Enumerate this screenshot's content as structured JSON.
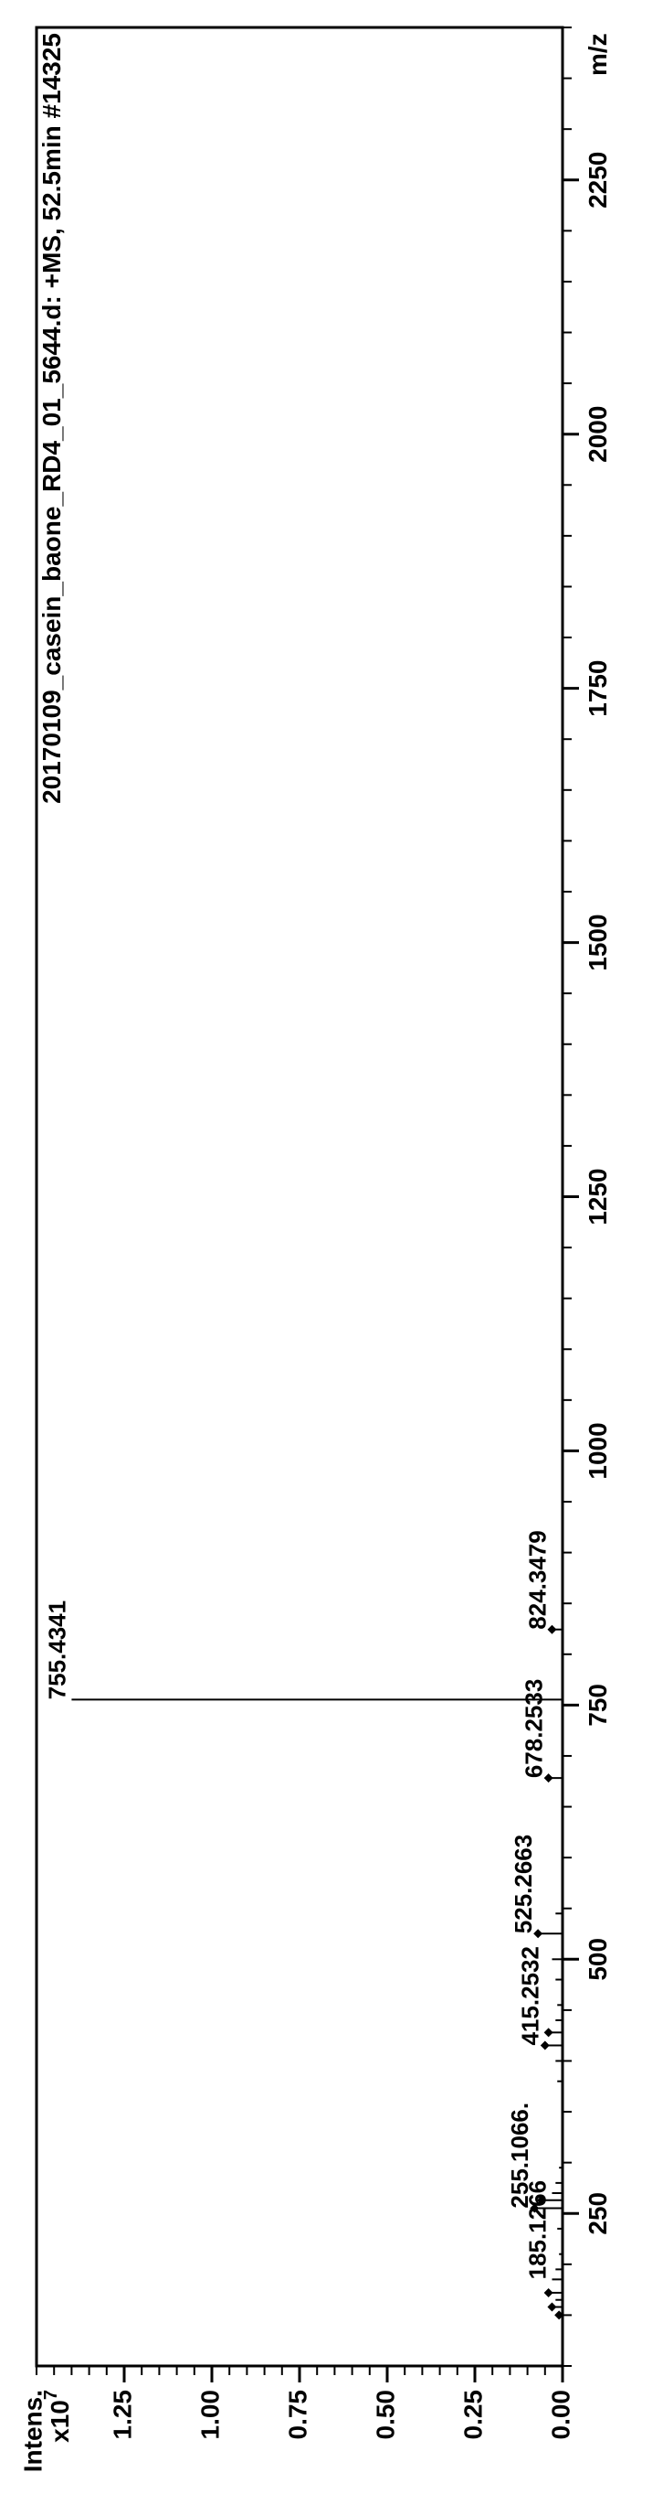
{
  "spectrum": {
    "type": "mass-spectrum",
    "orientation": "rotated-90-ccw",
    "title_top_right": "20170109_casein_baone_RD4_01_5644.d: +MS, 52.5min #14325",
    "title_fontsize": 28,
    "title_fontweight": "bold",
    "title_color": "#000000",
    "background_color": "#ffffff",
    "axis_color": "#000000",
    "axis_linewidth": 3,
    "tick_font_size": 28,
    "tick_font_weight": "bold",
    "tick_color": "#000000",
    "x_axis": {
      "label": "m/z",
      "label_fontsize": 28,
      "label_fontweight": "bold",
      "min": 100,
      "max": 2400,
      "major_ticks": [
        250,
        500,
        750,
        1000,
        1250,
        1500,
        1750,
        2000,
        2250
      ],
      "minor_step": 50
    },
    "y_axis": {
      "label_line1": "Intens.",
      "label_line2": "x10",
      "label_exponent": "7",
      "label_fontsize": 28,
      "label_fontweight": "bold",
      "min": 0.0,
      "max": 1.5,
      "major_ticks": [
        0.0,
        0.25,
        0.5,
        0.75,
        1.0,
        1.25
      ],
      "tick_format": "0.00"
    },
    "peaks": [
      {
        "mz": 150,
        "intensity": 0.01
      },
      {
        "mz": 158,
        "intensity": 0.03
      },
      {
        "mz": 165,
        "intensity": 0.02
      },
      {
        "mz": 172,
        "intensity": 0.04
      },
      {
        "mz": 185.1266,
        "intensity": 0.03,
        "label": "185.1266"
      },
      {
        "mz": 195,
        "intensity": 0.02
      },
      {
        "mz": 210,
        "intensity": 0.01
      },
      {
        "mz": 235,
        "intensity": 0.015
      },
      {
        "mz": 255.1066,
        "intensity": 0.08,
        "label": "255.1066."
      },
      {
        "mz": 263,
        "intensity": 0.06
      },
      {
        "mz": 270,
        "intensity": 0.03
      },
      {
        "mz": 280,
        "intensity": 0.02
      },
      {
        "mz": 295,
        "intensity": 0.01
      },
      {
        "mz": 380,
        "intensity": 0.015
      },
      {
        "mz": 400,
        "intensity": 0.02
      },
      {
        "mz": 415.2532,
        "intensity": 0.05,
        "label": "415.2532"
      },
      {
        "mz": 428,
        "intensity": 0.04
      },
      {
        "mz": 440,
        "intensity": 0.02
      },
      {
        "mz": 455,
        "intensity": 0.015
      },
      {
        "mz": 480,
        "intensity": 0.02
      },
      {
        "mz": 500,
        "intensity": 0.03
      },
      {
        "mz": 525.2663,
        "intensity": 0.07,
        "label": "525.2663"
      },
      {
        "mz": 545,
        "intensity": 0.02
      },
      {
        "mz": 678.2533,
        "intensity": 0.04,
        "label": "678.2533"
      },
      {
        "mz": 755.4341,
        "intensity": 1.4,
        "label": "755.4341"
      },
      {
        "mz": 824.3479,
        "intensity": 0.03,
        "label": "824.3479"
      }
    ],
    "peak_markers": [
      {
        "mz": 150,
        "marker": "diamond"
      },
      {
        "mz": 158,
        "marker": "diamond"
      },
      {
        "mz": 172,
        "marker": "diamond"
      },
      {
        "mz": 255.1066,
        "marker": "diamond"
      },
      {
        "mz": 263,
        "marker": "diamond"
      },
      {
        "mz": 415.2532,
        "marker": "diamond"
      },
      {
        "mz": 428,
        "marker": "diamond"
      },
      {
        "mz": 525.2663,
        "marker": "diamond"
      },
      {
        "mz": 678.2533,
        "marker": "diamond"
      },
      {
        "mz": 824.3479,
        "marker": "diamond"
      }
    ],
    "marker_size": 10,
    "marker_color": "#000000",
    "peak_color": "#000000",
    "peak_linewidth": 2,
    "peak_label_fontsize": 26,
    "peak_label_fontweight": "bold",
    "peak_label_color": "#000000"
  }
}
